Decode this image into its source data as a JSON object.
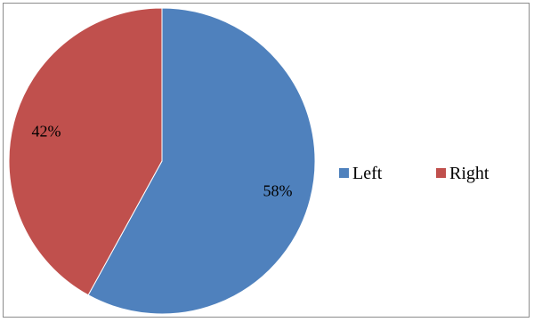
{
  "chart_data": {
    "type": "pie",
    "categories": [
      "Left",
      "Right"
    ],
    "values": [
      58,
      42
    ],
    "data_labels": [
      "58%",
      "42%"
    ],
    "colors": [
      "#4f81bd",
      "#c0504d"
    ],
    "start_angle_deg": 0,
    "direction": "clockwise",
    "legend": {
      "position": "right",
      "entries": [
        "Left",
        "Right"
      ]
    }
  }
}
